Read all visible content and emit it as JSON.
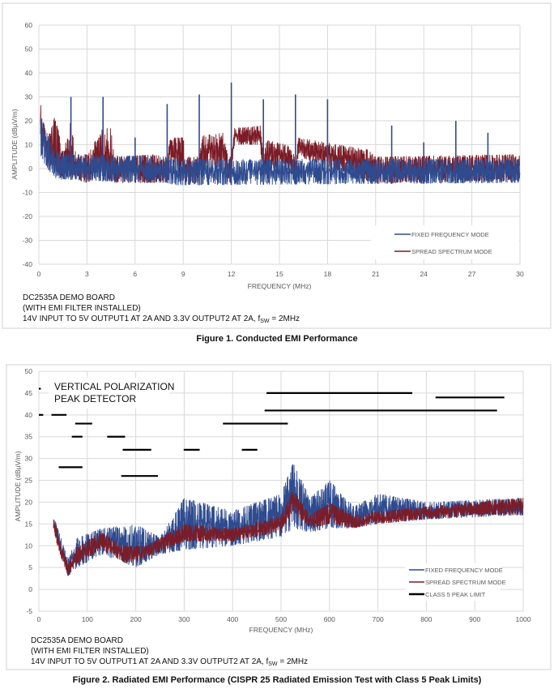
{
  "chart_data": [
    {
      "type": "line",
      "title": "",
      "caption": "Figure 1. Conducted EMI Performance",
      "xlabel": "FREQUENCY (MHz)",
      "ylabel": "AMPLITUDE (dBµV/m)",
      "xlim": [
        0,
        30
      ],
      "ylim": [
        -40,
        60
      ],
      "xticks": [
        "0",
        "3",
        "6",
        "9",
        "12",
        "15",
        "18",
        "21",
        "24",
        "27",
        "30"
      ],
      "yticks": [
        "60",
        "50",
        "40",
        "30",
        "20",
        "10",
        "0",
        "-10",
        "-20",
        "-30",
        "-40"
      ],
      "grid": true,
      "legend_position": "bottom-right",
      "notes": [
        "DC2535A DEMO BOARD",
        "(WITH EMI FILTER INSTALLED)"
      ],
      "note_line3": {
        "text": "14V INPUT TO 5V OUTPUT1 AT 2A AND 3.3V OUTPUT2 AT 2A, f",
        "sub": "SW",
        "tail": " = 2MHz"
      },
      "series": [
        {
          "name": "SPREAD SPECTRUM MODE",
          "color": "#7b1c27",
          "envelope": {
            "x": [
              0.1,
              0.5,
              1.0,
              1.5,
              2.0,
              2.3,
              3.0,
              4.0,
              4.5,
              4.7,
              7.0,
              8.0,
              8.2,
              9.0,
              9.2,
              10.0,
              10.2,
              11.5,
              11.8,
              12.0,
              12.2,
              13.8,
              14.0,
              14.2,
              15.5,
              16.0,
              16.2,
              20.5,
              21.0,
              30.0
            ],
            "upper": [
              28,
              12,
              22,
              8,
              21,
              6,
              6,
              17,
              17,
              5,
              6,
              5,
              13,
              13,
              5,
              5,
              14,
              15,
              5,
              5,
              17,
              18,
              5,
              12,
              10,
              5,
              13,
              8,
              5,
              6
            ],
            "lower": [
              15,
              0,
              -3,
              -5,
              -3,
              -5,
              -6,
              -3,
              -5,
              -6,
              -6,
              -6,
              2,
              -5,
              -6,
              -6,
              0,
              0,
              -6,
              -6,
              10,
              10,
              -6,
              0,
              0,
              -4,
              5,
              -5,
              -6,
              -5
            ]
          },
          "spikes": []
        },
        {
          "name": "FIXED FREQUENCY MODE",
          "color": "#2f4b8f",
          "envelope": {
            "x": [
              0.1,
              0.5,
              1.0,
              2.5,
              8.0,
              8.5,
              30.0
            ],
            "upper": [
              22,
              15,
              7,
              6,
              5,
              4,
              4
            ],
            "lower": [
              5,
              0,
              -4,
              -5,
              -6,
              -7,
              -6
            ]
          },
          "spikes": [
            [
              2,
              30
            ],
            [
              4,
              30
            ],
            [
              6,
              13
            ],
            [
              8,
              27
            ],
            [
              10,
              31
            ],
            [
              12,
              36
            ],
            [
              14,
              29
            ],
            [
              16,
              31
            ],
            [
              18,
              29
            ],
            [
              22,
              18
            ],
            [
              24,
              11
            ],
            [
              26,
              20
            ],
            [
              28,
              15
            ]
          ]
        }
      ]
    },
    {
      "type": "line",
      "title": "",
      "caption": "Figure 2. Radiated EMI Performance (CISPR 25 Radiated Emission Test with Class 5 Peak Limits)",
      "annotation": [
        "VERTICAL POLARIZATION",
        "PEAK DETECTOR"
      ],
      "xlabel": "FREQUENCY (MHz)",
      "ylabel": "AMPLITUDE (dBµV/m)",
      "xlim": [
        0,
        1000
      ],
      "ylim": [
        -5,
        50
      ],
      "xticks": [
        "0",
        "100",
        "200",
        "300",
        "400",
        "500",
        "600",
        "700",
        "800",
        "900",
        "1000"
      ],
      "yticks": [
        "50",
        "45",
        "40",
        "35",
        "30",
        "25",
        "20",
        "15",
        "10",
        "5",
        "0",
        "-5"
      ],
      "grid": true,
      "legend_position": "bottom-right",
      "notes": [
        "DC2535A DEMO BOARD",
        "(WITH EMI FILTER INSTALLED)"
      ],
      "note_line3": {
        "text": "14V INPUT TO 5V OUTPUT1 AT 2A AND 3.3V OUTPUT2 AT 2A, f",
        "sub": "SW",
        "tail": " = 2MHz"
      },
      "series": [
        {
          "name": "FIXED FREQUENCY MODE",
          "color": "#2f4b8f",
          "envelope": {
            "x": [
              30,
              60,
              80,
              130,
              200,
              250,
              300,
              400,
              500,
              525,
              560,
              600,
              650,
              700,
              800,
              1000
            ],
            "upper": [
              17,
              7,
              12,
              14,
              15,
              12,
              21,
              18,
              22,
              29,
              21,
              25,
              19,
              22,
              20,
              21
            ],
            "lower": [
              14,
              3,
              5,
              8,
              5,
              8,
              9,
              10,
              12,
              14,
              13,
              14,
              14,
              15,
              16,
              17
            ]
          }
        },
        {
          "name": "SPREAD SPECTRUM MODE",
          "color": "#7b1c27",
          "envelope": {
            "x": [
              30,
              40,
              60,
              80,
              130,
              180,
              220,
              300,
              400,
              500,
              525,
              560,
              600,
              650,
              700,
              800,
              900,
              1000
            ],
            "upper": [
              18,
              12,
              6,
              10,
              13,
              10,
              10,
              15,
              14,
              17,
              23,
              17,
              20,
              17,
              18,
              19,
              20,
              21
            ],
            "lower": [
              14,
              9,
              3,
              6,
              9,
              6,
              7,
              11,
              11,
              13,
              18,
              14,
              15,
              14,
              15,
              16,
              17,
              17
            ]
          }
        },
        {
          "name": "CLASS 5 PEAK LIMIT",
          "color": "#000000",
          "segments": [
            [
              0,
              4,
              46
            ],
            [
              0,
              9,
              40
            ],
            [
              26,
              57,
              40
            ],
            [
              75,
              110,
              38
            ],
            [
              68,
              90,
              35
            ],
            [
              141,
              178,
              35
            ],
            [
              173,
              232,
              32
            ],
            [
              299,
              332,
              32
            ],
            [
              419,
              451,
              32
            ],
            [
              41,
              90,
              28
            ],
            [
              170,
              246,
              26
            ],
            [
              380,
              514,
              38
            ],
            [
              470,
              771,
              45
            ],
            [
              466,
              946,
              41
            ],
            [
              819,
              961,
              44
            ]
          ]
        }
      ]
    }
  ]
}
